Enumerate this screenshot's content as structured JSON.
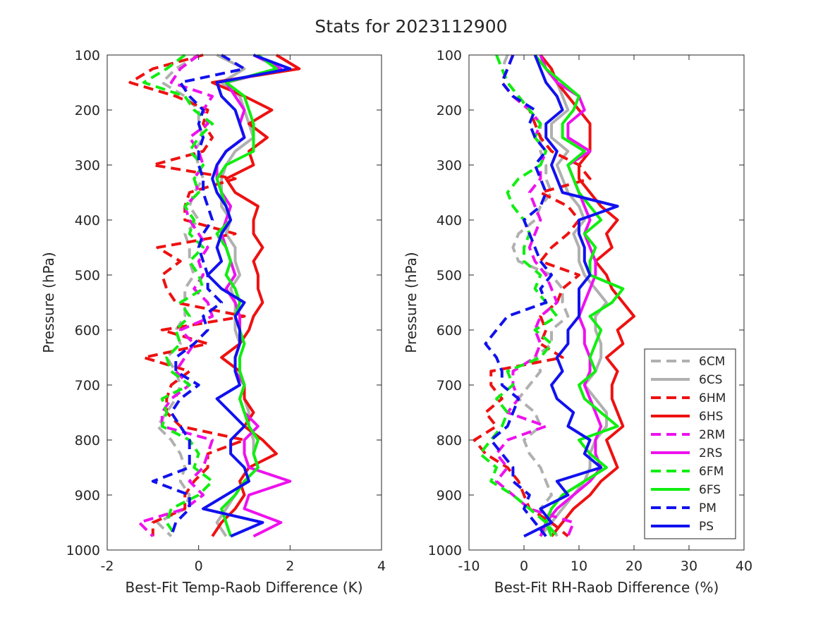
{
  "figure": {
    "title": "Stats for 2023112900"
  },
  "colors": {
    "6C": "#b0b0b0",
    "6H": "#ee1111",
    "2R": "#ee11ee",
    "6F": "#11ee11",
    "P": "#1111ee"
  },
  "legend": {
    "placement": "bottom-right of right panel",
    "entries": [
      {
        "label": "6CM",
        "color": "#b0b0b0",
        "dash": true
      },
      {
        "label": "6CS",
        "color": "#b0b0b0",
        "dash": false
      },
      {
        "label": "6HM",
        "color": "#ee1111",
        "dash": true
      },
      {
        "label": "6HS",
        "color": "#ee1111",
        "dash": false
      },
      {
        "label": "2RM",
        "color": "#ee11ee",
        "dash": true
      },
      {
        "label": "2RS",
        "color": "#ee11ee",
        "dash": false
      },
      {
        "label": "6FM",
        "color": "#11ee11",
        "dash": true
      },
      {
        "label": "6FS",
        "color": "#11ee11",
        "dash": false
      },
      {
        "label": "PM",
        "color": "#1111ee",
        "dash": true
      },
      {
        "label": "PS",
        "color": "#1111ee",
        "dash": false
      }
    ]
  },
  "chart_data": [
    {
      "type": "line",
      "xlabel": "Best-Fit Temp-Raob Difference (K)",
      "ylabel": "Pressure (hPa)",
      "xlim": [
        -2,
        4
      ],
      "ylim": [
        100,
        1000
      ],
      "y_reversed": true,
      "xticks": [
        -2,
        0,
        2,
        4
      ],
      "yticks": [
        100,
        200,
        300,
        400,
        500,
        600,
        700,
        800,
        900,
        1000
      ],
      "grid": false,
      "pressure": [
        100,
        125,
        150,
        175,
        200,
        225,
        250,
        275,
        300,
        325,
        350,
        375,
        400,
        425,
        450,
        475,
        500,
        525,
        550,
        575,
        600,
        625,
        650,
        675,
        700,
        725,
        750,
        775,
        800,
        825,
        850,
        875,
        900,
        925,
        950,
        975
      ],
      "series": [
        {
          "name": "6CM",
          "color": "#b0b0b0",
          "dash": true,
          "values": [
            0.0,
            -0.5,
            -0.8,
            -0.3,
            0.0,
            0.0,
            0.1,
            -0.1,
            0.0,
            0.1,
            -0.1,
            -0.2,
            0.0,
            -0.3,
            -0.2,
            -0.2,
            -0.1,
            -0.3,
            -0.3,
            -0.3,
            -0.5,
            -0.4,
            -0.7,
            -0.5,
            -0.4,
            -0.5,
            -0.7,
            -0.9,
            -0.6,
            -0.4,
            -0.3,
            -0.4,
            -0.2,
            -0.3,
            -0.9,
            -0.6
          ]
        },
        {
          "name": "6CS",
          "color": "#b0b0b0",
          "dash": false,
          "values": [
            0.4,
            1.0,
            0.5,
            0.9,
            1.0,
            1.1,
            1.2,
            0.8,
            0.6,
            0.5,
            0.5,
            0.5,
            0.7,
            0.6,
            0.8,
            0.8,
            0.9,
            0.7,
            0.8,
            0.8,
            0.8,
            0.9,
            0.8,
            0.8,
            1.0,
            1.0,
            1.1,
            1.1,
            1.2,
            1.2,
            1.3,
            1.0,
            0.8,
            0.6,
            0.4,
            0.6
          ]
        },
        {
          "name": "6HM",
          "color": "#ee1111",
          "dash": true,
          "values": [
            0.1,
            -1.0,
            -1.5,
            -0.5,
            0.2,
            0.1,
            0.3,
            0.1,
            -1.0,
            0.8,
            -0.2,
            -0.3,
            -0.3,
            0.8,
            -0.9,
            -0.4,
            -0.8,
            -0.7,
            -0.5,
            1.0,
            -0.8,
            0.2,
            -1.2,
            -0.2,
            -0.6,
            -0.7,
            -0.7,
            -0.4,
            1.0,
            0.2,
            0.2,
            -0.1,
            -0.3,
            -0.3,
            -1.0,
            -1.0
          ]
        },
        {
          "name": "6HS",
          "color": "#ee1111",
          "dash": false,
          "values": [
            1.7,
            2.2,
            0.3,
            1.0,
            1.6,
            1.1,
            1.5,
            1.1,
            1.2,
            0.6,
            0.8,
            1.3,
            1.2,
            1.2,
            1.4,
            1.2,
            1.3,
            1.3,
            1.4,
            1.2,
            1.1,
            0.9,
            0.5,
            0.9,
            1.0,
            1.0,
            1.2,
            1.0,
            1.4,
            1.7,
            1.1,
            0.9,
            1.0,
            0.8,
            0.5,
            0.3
          ]
        },
        {
          "name": "2RM",
          "color": "#ee11ee",
          "dash": true,
          "values": [
            0.0,
            -0.4,
            -0.6,
            0.3,
            0.1,
            0.2,
            -0.2,
            0.0,
            0.1,
            -0.1,
            0.0,
            -0.3,
            -0.2,
            0.0,
            0.2,
            0.0,
            0.1,
            -0.1,
            0.2,
            0.3,
            -0.4,
            -0.1,
            -0.3,
            -0.5,
            -0.2,
            -0.6,
            -0.8,
            -0.8,
            0.3,
            0.2,
            0.1,
            -0.2,
            0.1,
            -0.3,
            -1.3,
            -1.0
          ]
        },
        {
          "name": "2RS",
          "color": "#ee11ee",
          "dash": false,
          "values": [
            1.2,
            1.8,
            0.6,
            0.8,
            1.0,
            0.9,
            1.0,
            0.6,
            0.4,
            0.4,
            0.5,
            0.7,
            0.6,
            0.5,
            0.6,
            0.7,
            0.8,
            0.6,
            0.8,
            0.9,
            0.9,
            0.9,
            0.8,
            0.8,
            1.0,
            0.9,
            1.0,
            1.3,
            1.0,
            1.0,
            1.1,
            2.0,
            1.1,
            1.0,
            1.8,
            1.2
          ]
        },
        {
          "name": "6FM",
          "color": "#11ee11",
          "dash": true,
          "values": [
            -0.3,
            -0.7,
            -1.2,
            -0.3,
            -0.1,
            0.3,
            0.0,
            -0.2,
            0.1,
            -0.1,
            0.0,
            -0.3,
            -0.1,
            -0.2,
            0.1,
            -0.2,
            0.0,
            0.1,
            -0.4,
            -0.2,
            -0.5,
            -0.4,
            -0.7,
            -0.6,
            -0.2,
            -0.8,
            -0.7,
            -0.8,
            -0.2,
            0.0,
            -0.1,
            0.3,
            0.0,
            -0.6,
            -0.7,
            -0.5
          ]
        },
        {
          "name": "6FS",
          "color": "#11ee11",
          "dash": false,
          "values": [
            1.3,
            1.7,
            0.6,
            1.0,
            1.1,
            1.2,
            1.2,
            1.2,
            0.6,
            0.4,
            0.5,
            0.6,
            0.7,
            0.4,
            0.6,
            0.7,
            0.6,
            0.8,
            0.9,
            0.8,
            0.9,
            1.0,
            0.9,
            0.9,
            1.0,
            0.9,
            1.0,
            1.1,
            1.3,
            1.2,
            1.3,
            1.0,
            0.8,
            0.5,
            0.6,
            0.7
          ]
        },
        {
          "name": "PM",
          "color": "#1111ee",
          "dash": true,
          "values": [
            0.5,
            1.0,
            -0.4,
            -0.2,
            0.1,
            0.0,
            0.1,
            0.0,
            0.0,
            0.1,
            0.1,
            0.2,
            0.3,
            0.1,
            0.0,
            0.1,
            0.2,
            0.2,
            0.5,
            0.1,
            0.2,
            -0.1,
            -0.5,
            -0.5,
            0.0,
            -0.4,
            -0.6,
            -0.4,
            -0.2,
            -0.2,
            -0.2,
            -1.0,
            -0.2,
            -0.2,
            -0.5,
            -0.6
          ]
        },
        {
          "name": "PS",
          "color": "#1111ee",
          "dash": false,
          "values": [
            1.2,
            2.0,
            0.4,
            0.5,
            0.8,
            0.9,
            1.0,
            0.6,
            0.4,
            0.3,
            0.4,
            0.6,
            0.7,
            0.5,
            0.4,
            0.5,
            0.2,
            0.5,
            1.0,
            0.8,
            0.9,
            0.9,
            0.8,
            0.8,
            0.9,
            0.4,
            0.7,
            1.0,
            0.7,
            0.7,
            1.0,
            1.1,
            0.6,
            0.1,
            1.4,
            0.7
          ]
        }
      ]
    },
    {
      "type": "line",
      "xlabel": "Best-Fit RH-Raob Difference (%)",
      "ylabel": "Pressure (hPa)",
      "xlim": [
        -10,
        40
      ],
      "ylim": [
        100,
        1000
      ],
      "y_reversed": true,
      "xticks": [
        -10,
        0,
        10,
        20,
        30,
        40
      ],
      "yticks": [
        100,
        200,
        300,
        400,
        500,
        600,
        700,
        800,
        900,
        1000
      ],
      "grid": false,
      "pressure": [
        100,
        125,
        150,
        175,
        200,
        225,
        250,
        275,
        300,
        325,
        350,
        375,
        400,
        425,
        450,
        475,
        500,
        525,
        550,
        575,
        600,
        625,
        650,
        675,
        700,
        725,
        750,
        775,
        800,
        825,
        850,
        875,
        900,
        925,
        950,
        975
      ],
      "series": [
        {
          "name": "6CM",
          "color": "#b0b0b0",
          "dash": true,
          "values": [
            -3,
            -4,
            -3,
            -1,
            1,
            3,
            3,
            3,
            4,
            4,
            5,
            3,
            2,
            -1,
            -2,
            -1,
            5,
            7,
            7,
            8,
            5,
            5,
            2,
            3,
            1,
            -1,
            2,
            3,
            0,
            1,
            3,
            4,
            5,
            3,
            5,
            6
          ]
        },
        {
          "name": "6CS",
          "color": "#b0b0b0",
          "dash": false,
          "values": [
            3,
            5,
            6,
            7,
            8,
            5,
            5,
            8,
            6,
            7,
            8,
            10,
            11,
            9,
            10,
            10,
            11,
            13,
            15,
            13,
            13,
            14,
            14,
            13,
            11,
            13,
            15,
            15,
            13,
            12,
            12,
            11,
            9,
            7,
            5,
            3
          ]
        },
        {
          "name": "6HM",
          "color": "#ee1111",
          "dash": true,
          "values": [
            -2,
            -3,
            -4,
            -2,
            1,
            2,
            3,
            5,
            10,
            12,
            3,
            8,
            10,
            8,
            5,
            3,
            10,
            7,
            6,
            3,
            4,
            3,
            7,
            -6,
            -6,
            -4,
            -7,
            -5,
            -9,
            -7,
            -3,
            -1,
            0,
            1,
            5,
            8
          ]
        },
        {
          "name": "6HS",
          "color": "#ee1111",
          "dash": false,
          "values": [
            3,
            5,
            6,
            8,
            10,
            12,
            12,
            12,
            10,
            10,
            12,
            14,
            17,
            15,
            16,
            13,
            15,
            16,
            18,
            20,
            17,
            18,
            15,
            17,
            16,
            16,
            17,
            18,
            15,
            16,
            17,
            14,
            12,
            9,
            7,
            5
          ]
        },
        {
          "name": "2RM",
          "color": "#ee11ee",
          "dash": true,
          "values": [
            -2,
            -3,
            -4,
            -2,
            1,
            3,
            2,
            4,
            3,
            3,
            1,
            2,
            3,
            2,
            1,
            2,
            4,
            5,
            6,
            3,
            2,
            3,
            2,
            -2,
            -2,
            -1,
            -3,
            4,
            -3,
            -5,
            -3,
            -5,
            -2,
            1,
            9,
            8
          ]
        },
        {
          "name": "2RS",
          "color": "#ee11ee",
          "dash": false,
          "values": [
            3,
            4,
            6,
            10,
            11,
            8,
            8,
            12,
            8,
            9,
            10,
            11,
            12,
            11,
            12,
            13,
            13,
            12,
            11,
            10,
            11,
            11,
            12,
            12,
            11,
            12,
            13,
            14,
            13,
            13,
            14,
            12,
            9,
            6,
            4,
            3
          ]
        },
        {
          "name": "6FM",
          "color": "#11ee11",
          "dash": true,
          "values": [
            -5,
            -4,
            -3,
            -1,
            1,
            3,
            2,
            4,
            3,
            -1,
            -3,
            -2,
            0,
            1,
            0,
            0,
            3,
            2,
            4,
            6,
            2,
            5,
            3,
            -3,
            -2,
            -5,
            -3,
            -4,
            -6,
            -8,
            -5,
            -6,
            -2,
            1,
            4,
            6
          ]
        },
        {
          "name": "6FS",
          "color": "#11ee11",
          "dash": false,
          "values": [
            2,
            4,
            7,
            10,
            9,
            7,
            7,
            11,
            8,
            9,
            10,
            12,
            14,
            11,
            13,
            12,
            12,
            18,
            16,
            12,
            14,
            13,
            12,
            13,
            10,
            11,
            14,
            17,
            10,
            12,
            15,
            11,
            7,
            5,
            4,
            5
          ]
        },
        {
          "name": "PM",
          "color": "#1111ee",
          "dash": true,
          "values": [
            -2,
            -3,
            -4,
            -2,
            2,
            1,
            2,
            4,
            2,
            3,
            4,
            3,
            0,
            1,
            2,
            3,
            5,
            3,
            4,
            -3,
            -5,
            -7,
            -5,
            -4,
            -4,
            -1,
            -2,
            -3,
            -6,
            -4,
            -2,
            -2,
            1,
            0,
            2,
            4
          ]
        },
        {
          "name": "PS",
          "color": "#1111ee",
          "dash": false,
          "values": [
            2,
            3,
            4,
            6,
            7,
            4,
            4,
            6,
            5,
            6,
            7,
            17,
            10,
            10,
            11,
            11,
            12,
            10,
            10,
            10,
            8,
            8,
            6,
            7,
            5,
            6,
            9,
            8,
            12,
            11,
            14,
            6,
            8,
            3,
            5,
            0
          ]
        }
      ]
    }
  ]
}
